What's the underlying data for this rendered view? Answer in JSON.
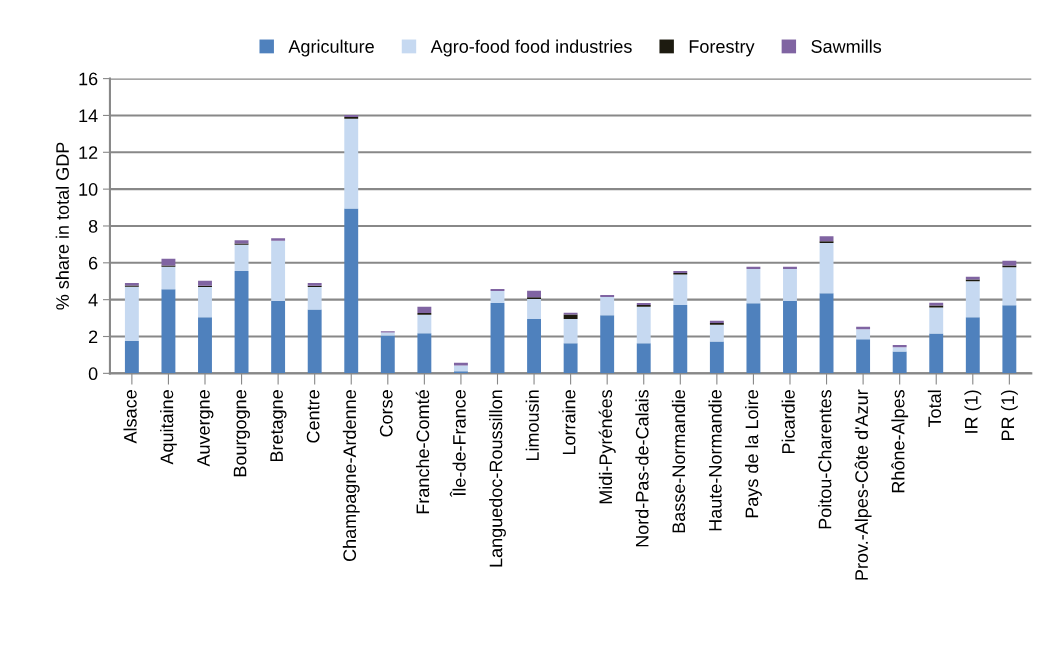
{
  "chart_data": {
    "type": "bar",
    "stacked": true,
    "ylabel": "% share in total GDP",
    "categories": [
      "Alsace",
      "Aquitaine",
      "Auvergne",
      "Bourgogne",
      "Bretagne",
      "Centre",
      "Champagne-Ardenne",
      "Corse",
      "Franche-Comté",
      "Île-de-France",
      "Languedoc-Roussillon",
      "Limousin",
      "Lorraine",
      "Midi-Pyrénées",
      "Nord-Pas-de-Calais",
      "Basse-Normandie",
      "Haute-Normandie",
      "Pays de la Loire",
      "Picardie",
      "Poitou-Charentes",
      "Prov.-Alpes-Côte d'Azur",
      "Rhône-Alpes",
      "Total",
      "IR (1)",
      "PR (1)"
    ],
    "series": [
      {
        "name": "Agriculture",
        "color": "#4f81bd",
        "values": [
          1.75,
          4.56,
          3.04,
          5.55,
          3.93,
          3.47,
          8.95,
          2.05,
          2.18,
          0.11,
          3.82,
          2.95,
          1.64,
          3.16,
          1.64,
          3.71,
          1.73,
          3.8,
          3.93,
          4.35,
          1.85,
          1.18,
          2.16,
          3.04,
          3.69
        ]
      },
      {
        "name": "Agro-food food industries",
        "color": "#c6d9f1",
        "values": [
          2.95,
          1.22,
          1.65,
          1.43,
          3.27,
          1.22,
          4.87,
          0.17,
          1.0,
          0.31,
          0.65,
          1.09,
          1.31,
          0.99,
          1.98,
          1.65,
          0.91,
          1.87,
          1.74,
          2.72,
          0.55,
          0.24,
          1.42,
          1.96,
          2.07
        ]
      },
      {
        "name": "Forestry",
        "color": "#1d1b10",
        "values": [
          0.07,
          0.08,
          0.07,
          0.07,
          null,
          0.07,
          0.1,
          null,
          0.09,
          null,
          null,
          0.09,
          0.24,
          null,
          0.09,
          0.09,
          0.09,
          null,
          null,
          0.1,
          null,
          null,
          0.1,
          0.09,
          0.1
        ]
      },
      {
        "name": "Sawmills",
        "color": "#8064a2",
        "values": [
          0.13,
          0.36,
          0.27,
          0.17,
          0.13,
          0.15,
          0.1,
          0.07,
          0.35,
          0.15,
          0.11,
          0.36,
          0.1,
          0.1,
          0.11,
          0.11,
          0.12,
          0.11,
          0.11,
          0.27,
          0.13,
          0.12,
          0.15,
          0.15,
          0.25
        ]
      }
    ],
    "ylim": [
      0,
      16
    ],
    "yticks": [
      0,
      2,
      4,
      6,
      8,
      10,
      12,
      14,
      16
    ],
    "grid": "y",
    "legend": "top"
  }
}
